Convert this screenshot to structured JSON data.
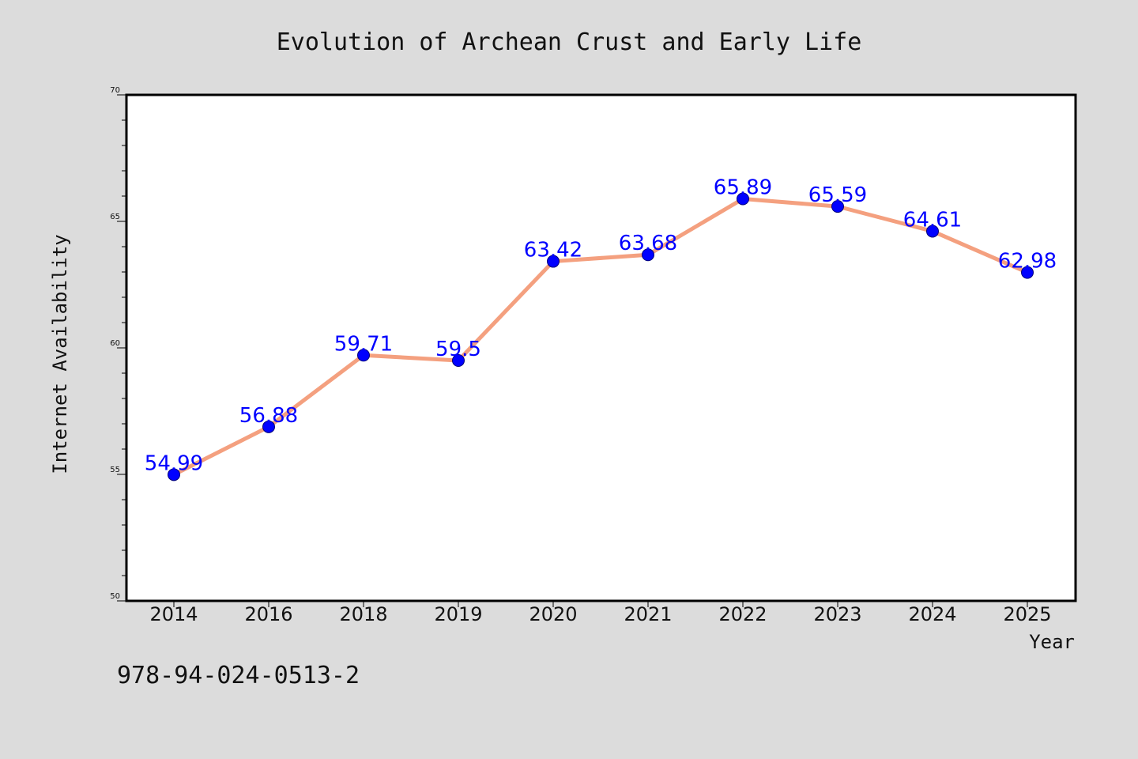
{
  "chart_data": {
    "type": "line",
    "title": "Evolution of Archean Crust and Early Life",
    "xlabel": "Year",
    "ylabel": "Internet Availability",
    "categories": [
      "2014",
      "2016",
      "2018",
      "2019",
      "2020",
      "2021",
      "2022",
      "2023",
      "2024",
      "2025"
    ],
    "series": [
      {
        "values": [
          54.99,
          56.88,
          59.71,
          59.5,
          63.42,
          63.68,
          65.89,
          65.59,
          64.61,
          62.98
        ],
        "labels": [
          "54.99",
          "56.88",
          "59.71",
          "59.5",
          "63.42",
          "63.68",
          "65.89",
          "65.59",
          "64.61",
          "62.98"
        ]
      }
    ],
    "ylim": [
      50,
      70
    ],
    "yticks": [
      "50",
      "55",
      "60",
      "65",
      "70"
    ],
    "grid": false,
    "line_color": "#f4a07f",
    "marker_color": "#0000ff",
    "label_color": "#0000ff",
    "background": "#dcdcdc",
    "plot_background": "#ffffff"
  },
  "footer": {
    "isbn": "978-94-024-0513-2"
  }
}
